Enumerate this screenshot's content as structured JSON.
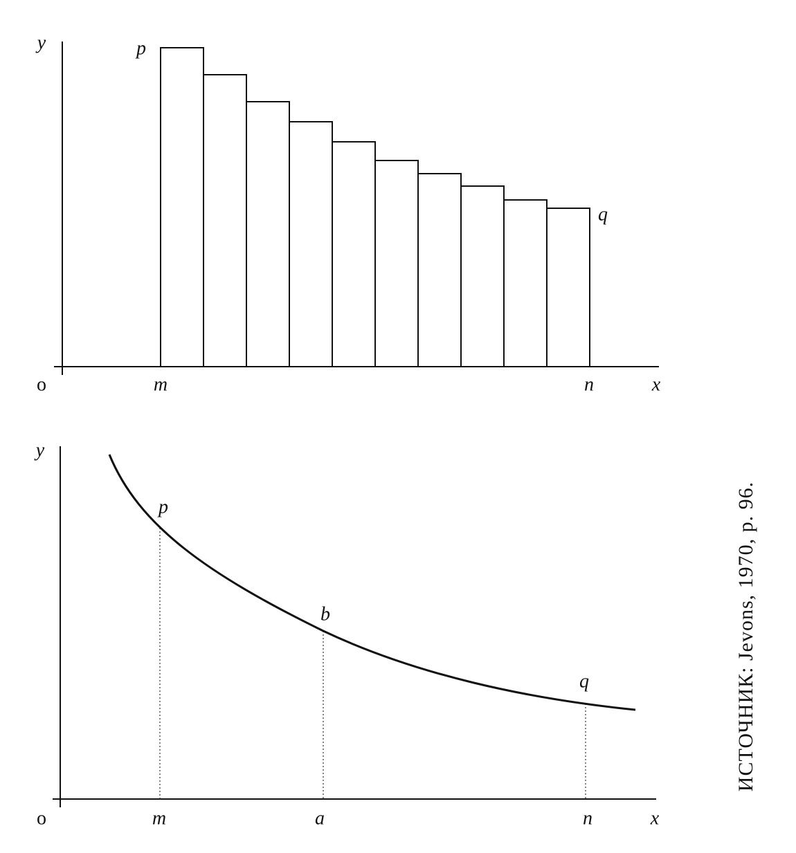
{
  "top_figure": {
    "y_axis": "y",
    "x_axis": "x",
    "origin": "o",
    "start_height": "p",
    "end_height": "q",
    "start_point": "m",
    "end_point": "n"
  },
  "bottom_figure": {
    "y_axis": "y",
    "x_axis": "x",
    "origin": "o",
    "curve_start": "p",
    "curve_middle": "b",
    "curve_end": "q",
    "start_point": "m",
    "middle_point": "a",
    "end_point": "n"
  },
  "source": "ИСТОЧНИК: Jevons, 1970, p. 96."
}
